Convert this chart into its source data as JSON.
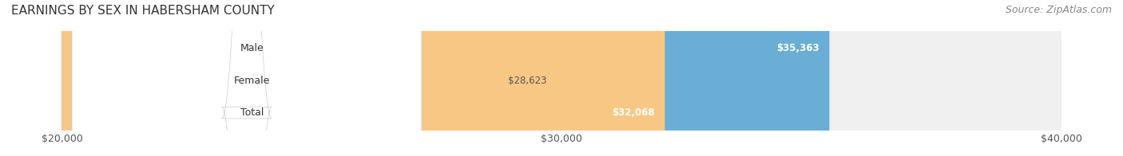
{
  "title": "EARNINGS BY SEX IN HABERSHAM COUNTY",
  "source": "Source: ZipAtlas.com",
  "categories": [
    "Male",
    "Female",
    "Total"
  ],
  "values": [
    35363,
    28623,
    32068
  ],
  "bar_colors": [
    "#6aaed6",
    "#f4a9c0",
    "#f9c784"
  ],
  "bar_bg_colors": [
    "#e8e8e8",
    "#e8e8e8",
    "#e8e8e8"
  ],
  "label_colors": [
    "#ffffff",
    "#555555",
    "#ffffff"
  ],
  "label_bg_colors": [
    "#c0c0c0",
    "#f0f0f0",
    "#f0d0a0"
  ],
  "xmin": 20000,
  "xmax": 40000,
  "xticks": [
    20000,
    30000,
    40000
  ],
  "xtick_labels": [
    "$20,000",
    "$30,000",
    "$40,000"
  ],
  "value_labels": [
    "$35,363",
    "$28,623",
    "$32,068"
  ],
  "title_fontsize": 11,
  "source_fontsize": 9,
  "tick_fontsize": 9,
  "bar_label_fontsize": 8.5,
  "category_fontsize": 9
}
